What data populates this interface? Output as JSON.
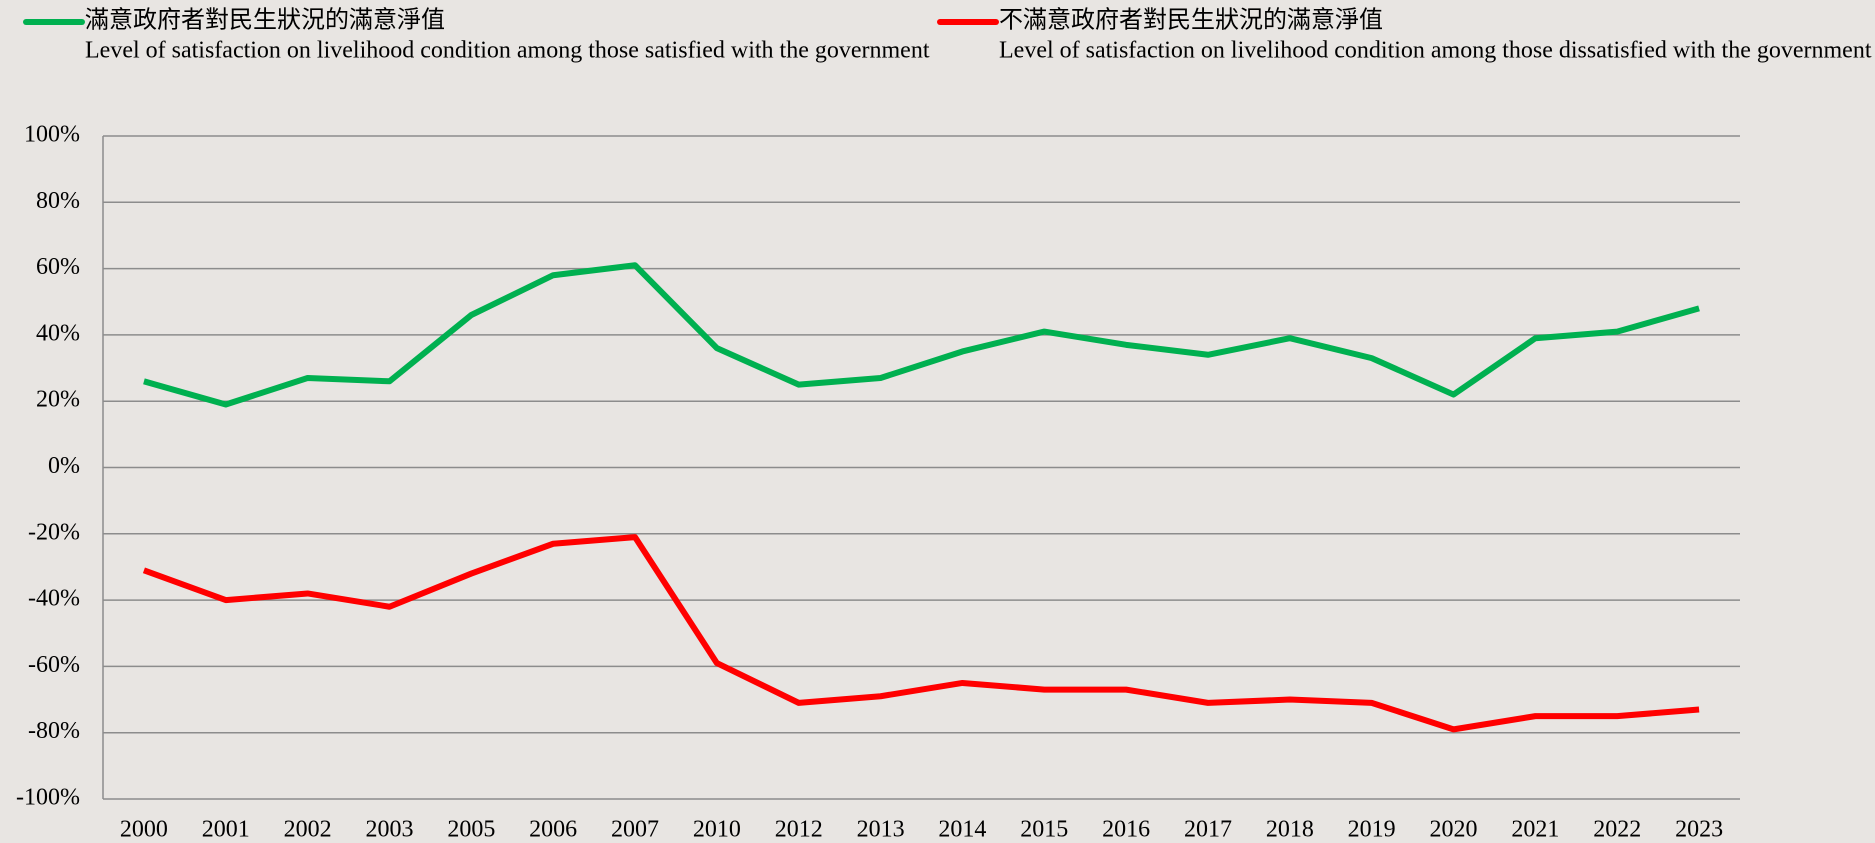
{
  "chart_data": {
    "type": "line",
    "categories": [
      "2000",
      "2001",
      "2002",
      "2003",
      "2005",
      "2006",
      "2007",
      "2010",
      "2012",
      "2013",
      "2014",
      "2015",
      "2016",
      "2017",
      "2018",
      "2019",
      "2020",
      "2021",
      "2022",
      "2023"
    ],
    "series": [
      {
        "name": "滿意政府者對民生狀況的滿意淨值",
        "name_en": "Level of satisfaction on livelihood condition among those satisfied with the government",
        "color": "#00b050",
        "values": [
          26,
          19,
          27,
          26,
          46,
          58,
          61,
          36,
          25,
          27,
          35,
          41,
          37,
          34,
          39,
          33,
          22,
          39,
          41,
          48
        ]
      },
      {
        "name": "不滿意政府者對民生狀況的滿意淨值",
        "name_en": "Level of satisfaction on livelihood condition among those dissatisfied with the government",
        "color": "#ff0000",
        "values": [
          -31,
          -40,
          -38,
          -42,
          -32,
          -23,
          -21,
          -59,
          -71,
          -69,
          -65,
          -67,
          -67,
          -71,
          -70,
          -71,
          -79,
          -75,
          -75,
          -73
        ]
      }
    ],
    "ylim": [
      -100,
      100
    ],
    "yticks": [
      {
        "value": -100,
        "label": "-100%"
      },
      {
        "value": -80,
        "label": "-80%"
      },
      {
        "value": -60,
        "label": "-60%"
      },
      {
        "value": -40,
        "label": "-40%"
      },
      {
        "value": -20,
        "label": "-20%"
      },
      {
        "value": 0,
        "label": "0%"
      },
      {
        "value": 20,
        "label": "20%"
      },
      {
        "value": 40,
        "label": "40%"
      },
      {
        "value": 60,
        "label": "60%"
      },
      {
        "value": 80,
        "label": "80%"
      },
      {
        "value": 100,
        "label": "100%"
      }
    ],
    "grid": true
  }
}
